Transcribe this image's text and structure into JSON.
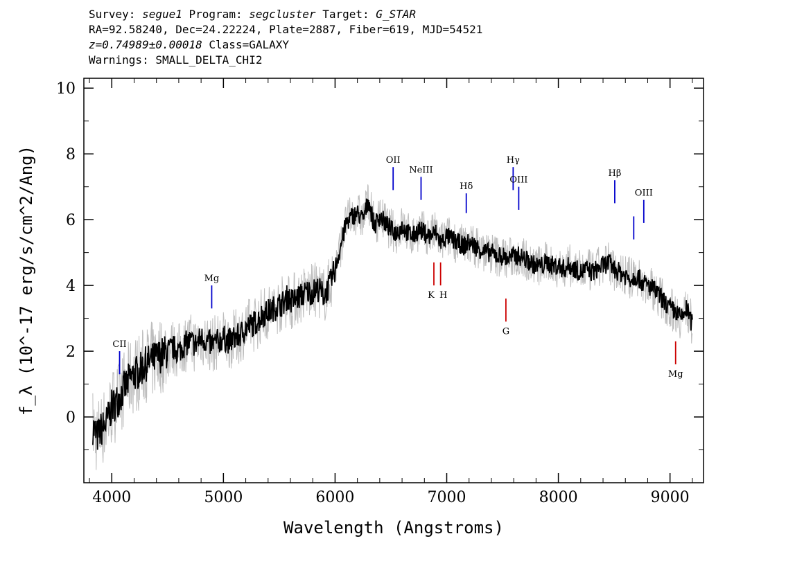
{
  "header": {
    "survey_label": "Survey:",
    "survey": "segue1",
    "program_label": "Program:",
    "program": "segcluster",
    "target_label": "Target:",
    "target": "G_STAR",
    "line2": "RA=92.58240, Dec=24.22224, Plate=2887, Fiber=619, MJD=54521",
    "redshift": "z=0.74989±0.00018",
    "class": "Class=GALAXY",
    "warnings": "Warnings: SMALL_DELTA_CHI2"
  },
  "chart_data": {
    "type": "line",
    "xlabel": "Wavelength (Angstroms)",
    "ylabel": "f_λ (10^-17 erg/s/cm^2/Ang)",
    "xlim": [
      3750,
      9300
    ],
    "ylim": [
      -2,
      10.3
    ],
    "x_ticks": [
      4000,
      5000,
      6000,
      7000,
      8000,
      9000
    ],
    "y_ticks": [
      0,
      2,
      4,
      6,
      8,
      10
    ],
    "grid": false,
    "series": [
      {
        "role": "flux",
        "color": "#000000",
        "x": [
          3830,
          3870,
          3900,
          3950,
          4000,
          4050,
          4100,
          4150,
          4200,
          4250,
          4300,
          4350,
          4400,
          4450,
          4500,
          4550,
          4600,
          4650,
          4700,
          4750,
          4800,
          4850,
          4900,
          4950,
          5000,
          5050,
          5100,
          5150,
          5200,
          5250,
          5300,
          5350,
          5400,
          5450,
          5500,
          5550,
          5580,
          5600,
          5650,
          5700,
          5750,
          5800,
          5850,
          5900,
          5950,
          6000,
          6050,
          6100,
          6150,
          6200,
          6250,
          6300,
          6350,
          6400,
          6450,
          6500,
          6550,
          6600,
          6650,
          6700,
          6750,
          6800,
          6850,
          6900,
          6950,
          7000,
          7050,
          7100,
          7150,
          7200,
          7250,
          7300,
          7350,
          7400,
          7450,
          7500,
          7550,
          7600,
          7650,
          7700,
          7750,
          7800,
          7850,
          7900,
          7950,
          8000,
          8050,
          8100,
          8150,
          8200,
          8250,
          8300,
          8350,
          8400,
          8450,
          8500,
          8550,
          8600,
          8650,
          8700,
          8750,
          8800,
          8850,
          8900,
          8950,
          9000,
          9050,
          9100,
          9150,
          9200
        ],
        "y": [
          -0.3,
          -0.6,
          -0.4,
          -0.2,
          0.3,
          0.5,
          0.8,
          1.1,
          1.3,
          1.4,
          1.6,
          1.7,
          1.8,
          1.9,
          2.0,
          2.1,
          2.0,
          2.2,
          2.3,
          2.2,
          2.4,
          2.3,
          2.2,
          2.3,
          2.4,
          2.3,
          2.4,
          2.5,
          2.7,
          2.8,
          2.9,
          3.1,
          3.2,
          3.3,
          3.4,
          3.5,
          3.7,
          3.5,
          3.6,
          3.7,
          3.8,
          3.8,
          3.9,
          3.7,
          4.0,
          4.5,
          5.2,
          5.9,
          6.1,
          6.2,
          6.0,
          6.6,
          5.8,
          6.1,
          5.9,
          5.7,
          5.6,
          5.8,
          5.6,
          5.5,
          5.7,
          5.6,
          5.5,
          5.6,
          5.3,
          5.5,
          5.4,
          5.3,
          5.2,
          5.3,
          5.2,
          5.1,
          5.0,
          5.0,
          4.9,
          4.9,
          4.8,
          4.9,
          4.9,
          4.8,
          4.7,
          4.6,
          4.6,
          4.7,
          4.6,
          4.6,
          4.5,
          4.6,
          4.5,
          4.4,
          4.5,
          4.4,
          4.5,
          4.6,
          4.7,
          4.5,
          4.4,
          4.3,
          4.2,
          4.3,
          4.1,
          4.0,
          3.9,
          3.7,
          3.5,
          3.3,
          3.2,
          3.0,
          3.3,
          2.8
        ]
      }
    ],
    "emission_lines": [
      {
        "label": "CII",
        "x": 4070,
        "color": "#0000cc"
      },
      {
        "label": "Mg",
        "x": 4895,
        "color": "#0000cc"
      },
      {
        "label": "OII",
        "x": 6520,
        "color": "#0000cc"
      },
      {
        "label": "NeIII",
        "x": 6770,
        "color": "#0000cc"
      },
      {
        "label": "Hδ",
        "x": 7175,
        "color": "#0000cc"
      },
      {
        "label": "Hγ",
        "x": 7595,
        "color": "#0000cc"
      },
      {
        "label": "OIII",
        "x": 7645,
        "color": "#0000cc"
      },
      {
        "label": "Hβ",
        "x": 8505,
        "color": "#0000cc"
      },
      {
        "label": "",
        "x": 8675,
        "color": "#0000cc"
      },
      {
        "label": "OIII",
        "x": 8765,
        "color": "#0000cc"
      }
    ],
    "absorption_lines": [
      {
        "label": "K",
        "x": 6885,
        "color": "#cc0000"
      },
      {
        "label": "H",
        "x": 6945,
        "color": "#cc0000"
      },
      {
        "label": "G",
        "x": 7530,
        "color": "#cc0000"
      },
      {
        "label": "Mg",
        "x": 9050,
        "color": "#cc0000"
      }
    ]
  }
}
